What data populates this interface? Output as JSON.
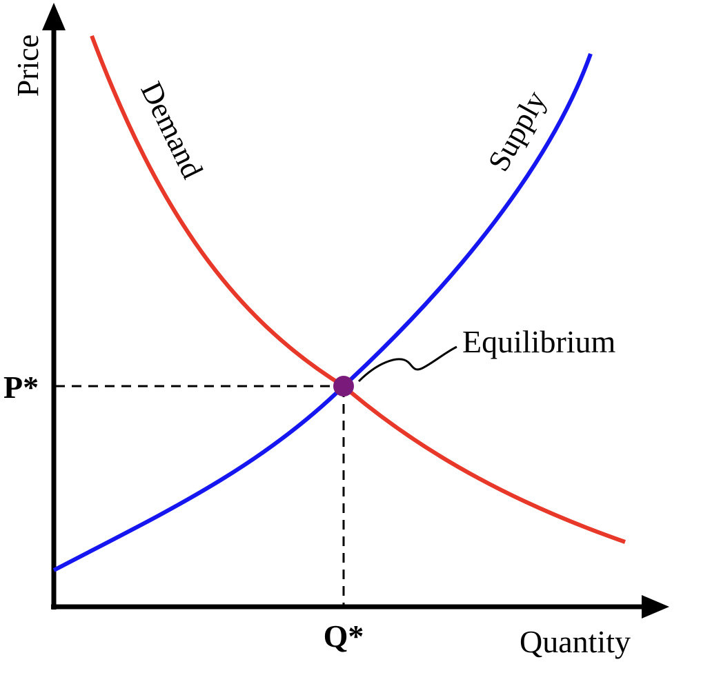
{
  "chart_data": {
    "type": "line",
    "title": "",
    "xlabel": "Quantity",
    "ylabel": "Price",
    "grid": false,
    "series": [
      {
        "name": "Demand",
        "color": "#e8382a"
      },
      {
        "name": "Supply",
        "color": "#1616f0"
      }
    ],
    "equilibrium": {
      "label": "Equilibrium",
      "price_label": "P*",
      "quantity_label": "Q*",
      "color": "#7a1a7a"
    }
  }
}
